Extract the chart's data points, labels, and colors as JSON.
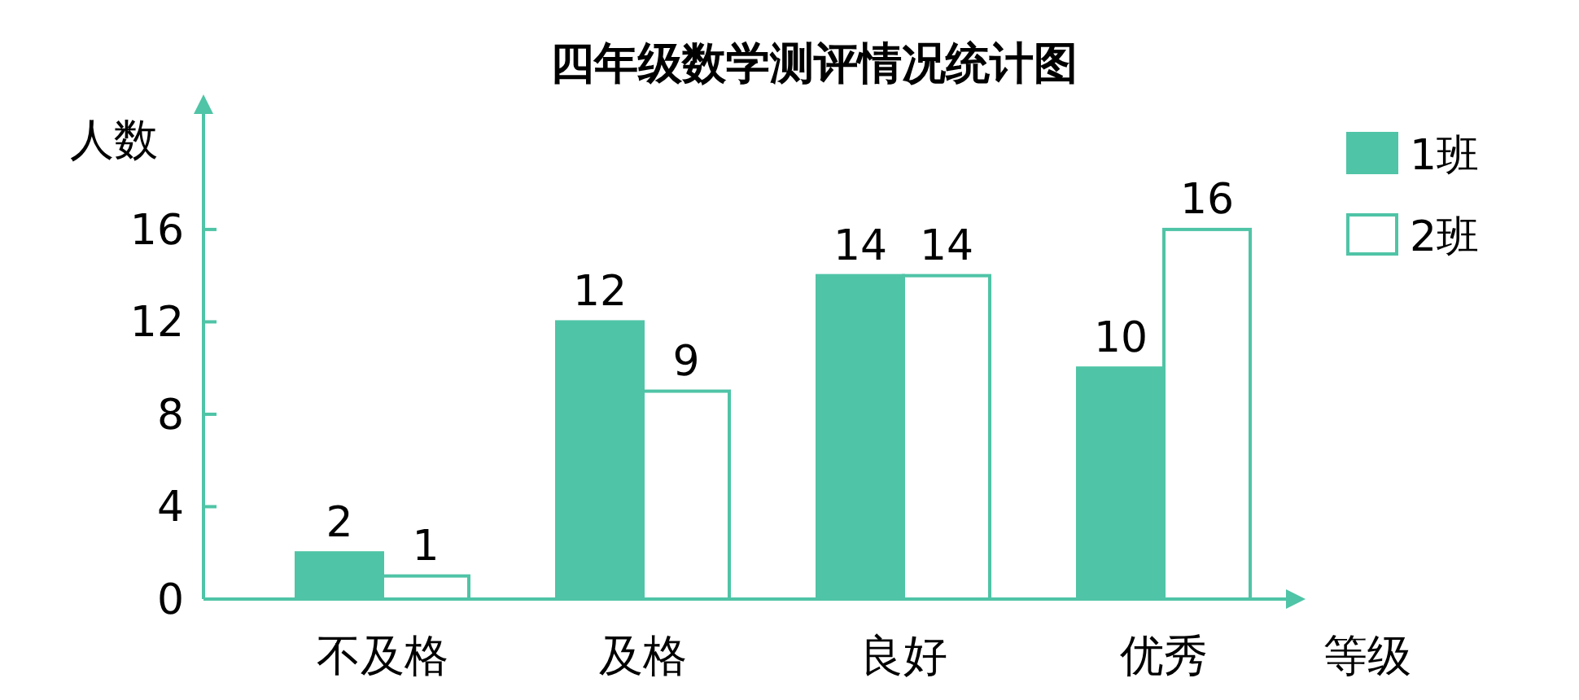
{
  "chart_data": {
    "type": "bar",
    "title": "四年级数学测评情况统计图",
    "xlabel": "等级",
    "ylabel": "人数",
    "categories": [
      "不及格",
      "及格",
      "良好",
      "优秀"
    ],
    "series": [
      {
        "name": "1班",
        "color": "#4fc4a6",
        "values": [
          2,
          12,
          14,
          10
        ]
      },
      {
        "name": "2班",
        "color": "#ffffff",
        "values": [
          1,
          9,
          14,
          16
        ]
      }
    ],
    "ylim": [
      0,
      21
    ],
    "yticks": [
      0,
      4,
      8,
      12,
      16
    ],
    "data_labels": true,
    "legend": "top right",
    "grid": false
  }
}
